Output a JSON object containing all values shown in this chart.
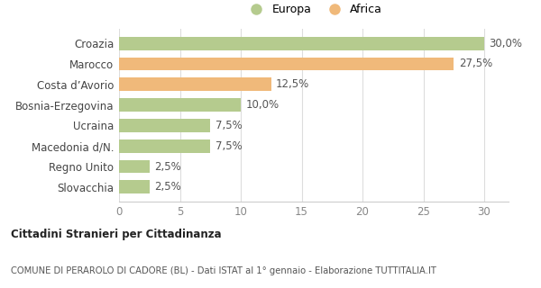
{
  "categories": [
    "Slovacchia",
    "Regno Unito",
    "Macedonia d/N.",
    "Ucraina",
    "Bosnia-Erzegovina",
    "Costa d’Avorio",
    "Marocco",
    "Croazia"
  ],
  "values": [
    2.5,
    2.5,
    7.5,
    7.5,
    10.0,
    12.5,
    27.5,
    30.0
  ],
  "colors": [
    "#b5cb8e",
    "#b5cb8e",
    "#b5cb8e",
    "#b5cb8e",
    "#b5cb8e",
    "#f0b97a",
    "#f0b97a",
    "#b5cb8e"
  ],
  "labels": [
    "2,5%",
    "2,5%",
    "7,5%",
    "7,5%",
    "10,0%",
    "12,5%",
    "27,5%",
    "30,0%"
  ],
  "legend": [
    {
      "label": "Europa",
      "color": "#b5cb8e"
    },
    {
      "label": "Africa",
      "color": "#f0b97a"
    }
  ],
  "xlim": [
    0,
    32
  ],
  "xticks": [
    0,
    5,
    10,
    15,
    20,
    25,
    30
  ],
  "title_bold": "Cittadini Stranieri per Cittadinanza",
  "subtitle": "COMUNE DI PERAROLO DI CADORE (BL) - Dati ISTAT al 1° gennaio - Elaborazione TUTTITALIA.IT",
  "background_color": "#ffffff",
  "bar_height": 0.65,
  "label_fontsize": 8.5,
  "tick_fontsize": 8.5,
  "category_fontsize": 8.5
}
